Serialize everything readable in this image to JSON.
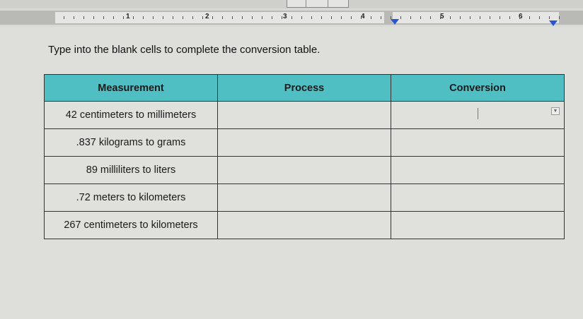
{
  "ruler": {
    "numbers": [
      "1",
      "2",
      "3",
      "4",
      "5",
      "6"
    ]
  },
  "instruction": "Type into the blank cells to complete the conversion table.",
  "table": {
    "headers": [
      "Measurement",
      "Process",
      "Conversion"
    ],
    "rows": [
      {
        "measurement": "42 centimeters to millimeters",
        "process": "",
        "conversion": ""
      },
      {
        "measurement": ".837 kilograms to grams",
        "process": "",
        "conversion": ""
      },
      {
        "measurement": "89 milliliters to liters",
        "process": "",
        "conversion": ""
      },
      {
        "measurement": ".72 meters to kilometers",
        "process": "",
        "conversion": ""
      },
      {
        "measurement": "267 centimeters to kilometers",
        "process": "",
        "conversion": ""
      }
    ]
  },
  "colors": {
    "header": "#4fbfc4",
    "indent_marker": "#2a56d6"
  },
  "icons": [
    "dropdown-arrow-icon",
    "indent-marker-icon"
  ]
}
